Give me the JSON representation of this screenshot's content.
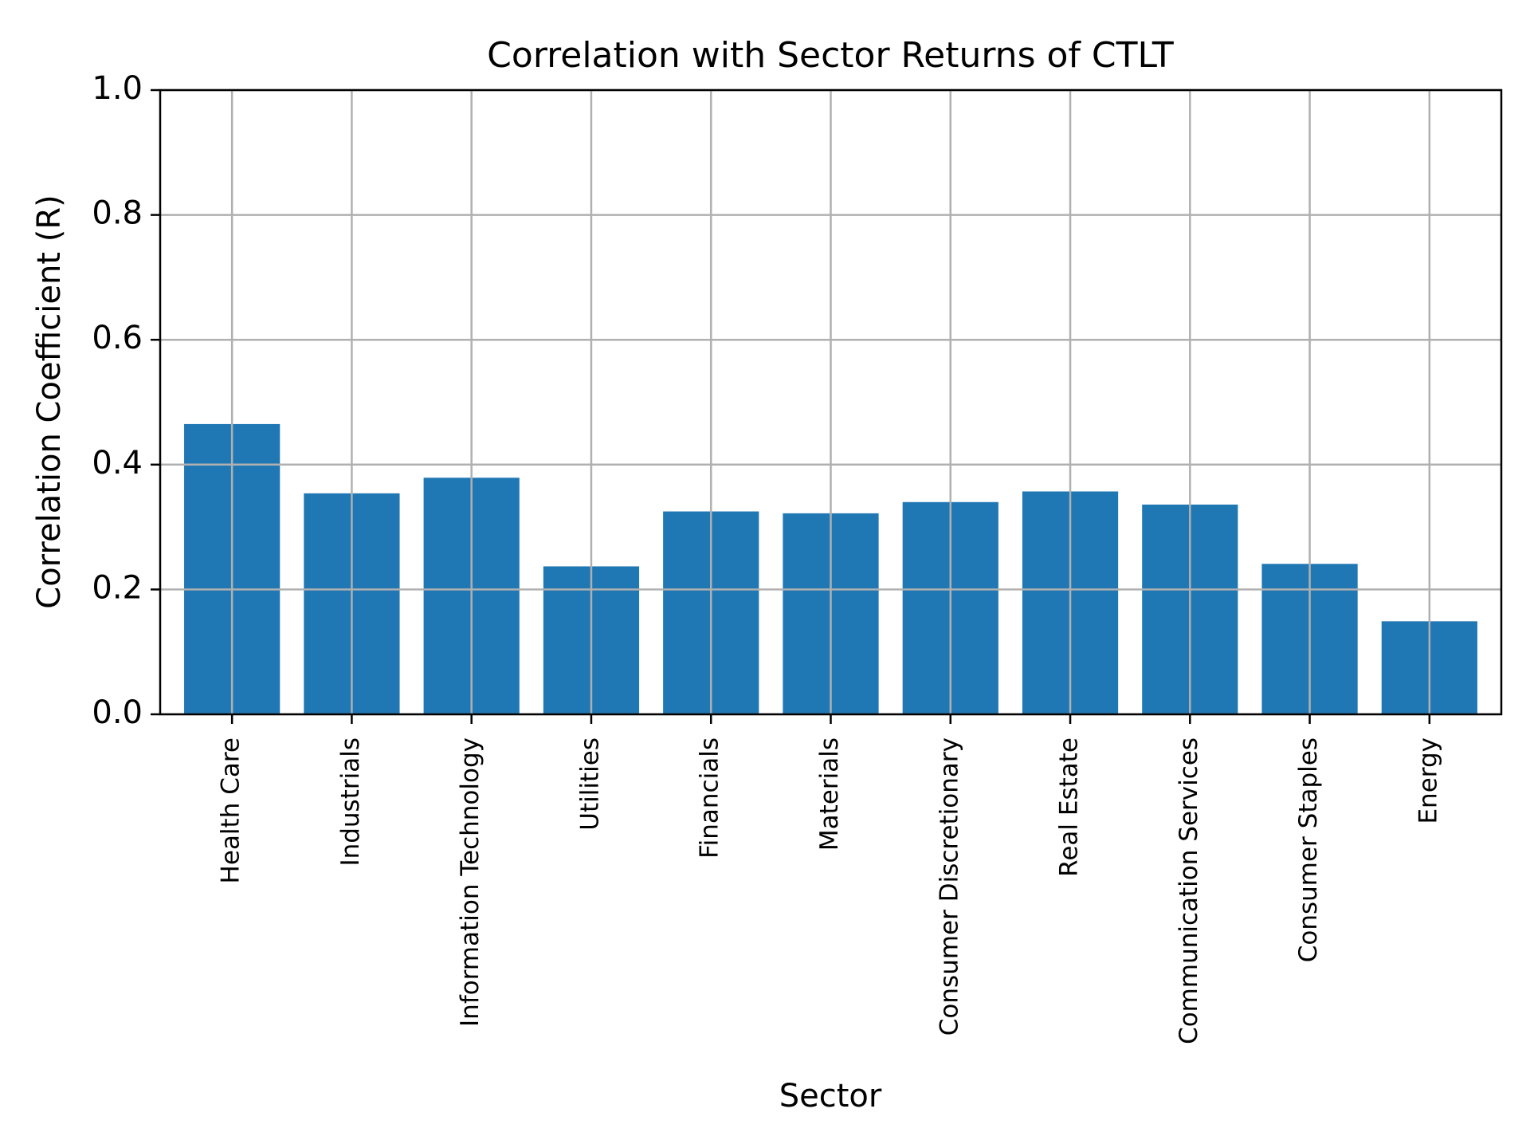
{
  "chart_data": {
    "type": "bar",
    "title": "Correlation with Sector Returns of CTLT",
    "x_label": "Sector",
    "y_label": "Correlation Coefficient (R)",
    "categories": [
      "Health Care",
      "Industrials",
      "Information Technology",
      "Utilities",
      "Financials",
      "Materials",
      "Consumer Discretionary",
      "Real Estate",
      "Communication Services",
      "Consumer Staples",
      "Energy"
    ],
    "values": [
      0.465,
      0.354,
      0.379,
      0.237,
      0.325,
      0.322,
      0.34,
      0.357,
      0.336,
      0.241,
      0.149
    ],
    "color": "#1f77b4",
    "ylim": [
      0,
      1
    ],
    "yticks": [
      {
        "value": 0,
        "label": "0.0"
      },
      0.2,
      0.4,
      0.6,
      0.8,
      {
        "value": 1,
        "label": "1.0"
      }
    ],
    "grid": true
  }
}
